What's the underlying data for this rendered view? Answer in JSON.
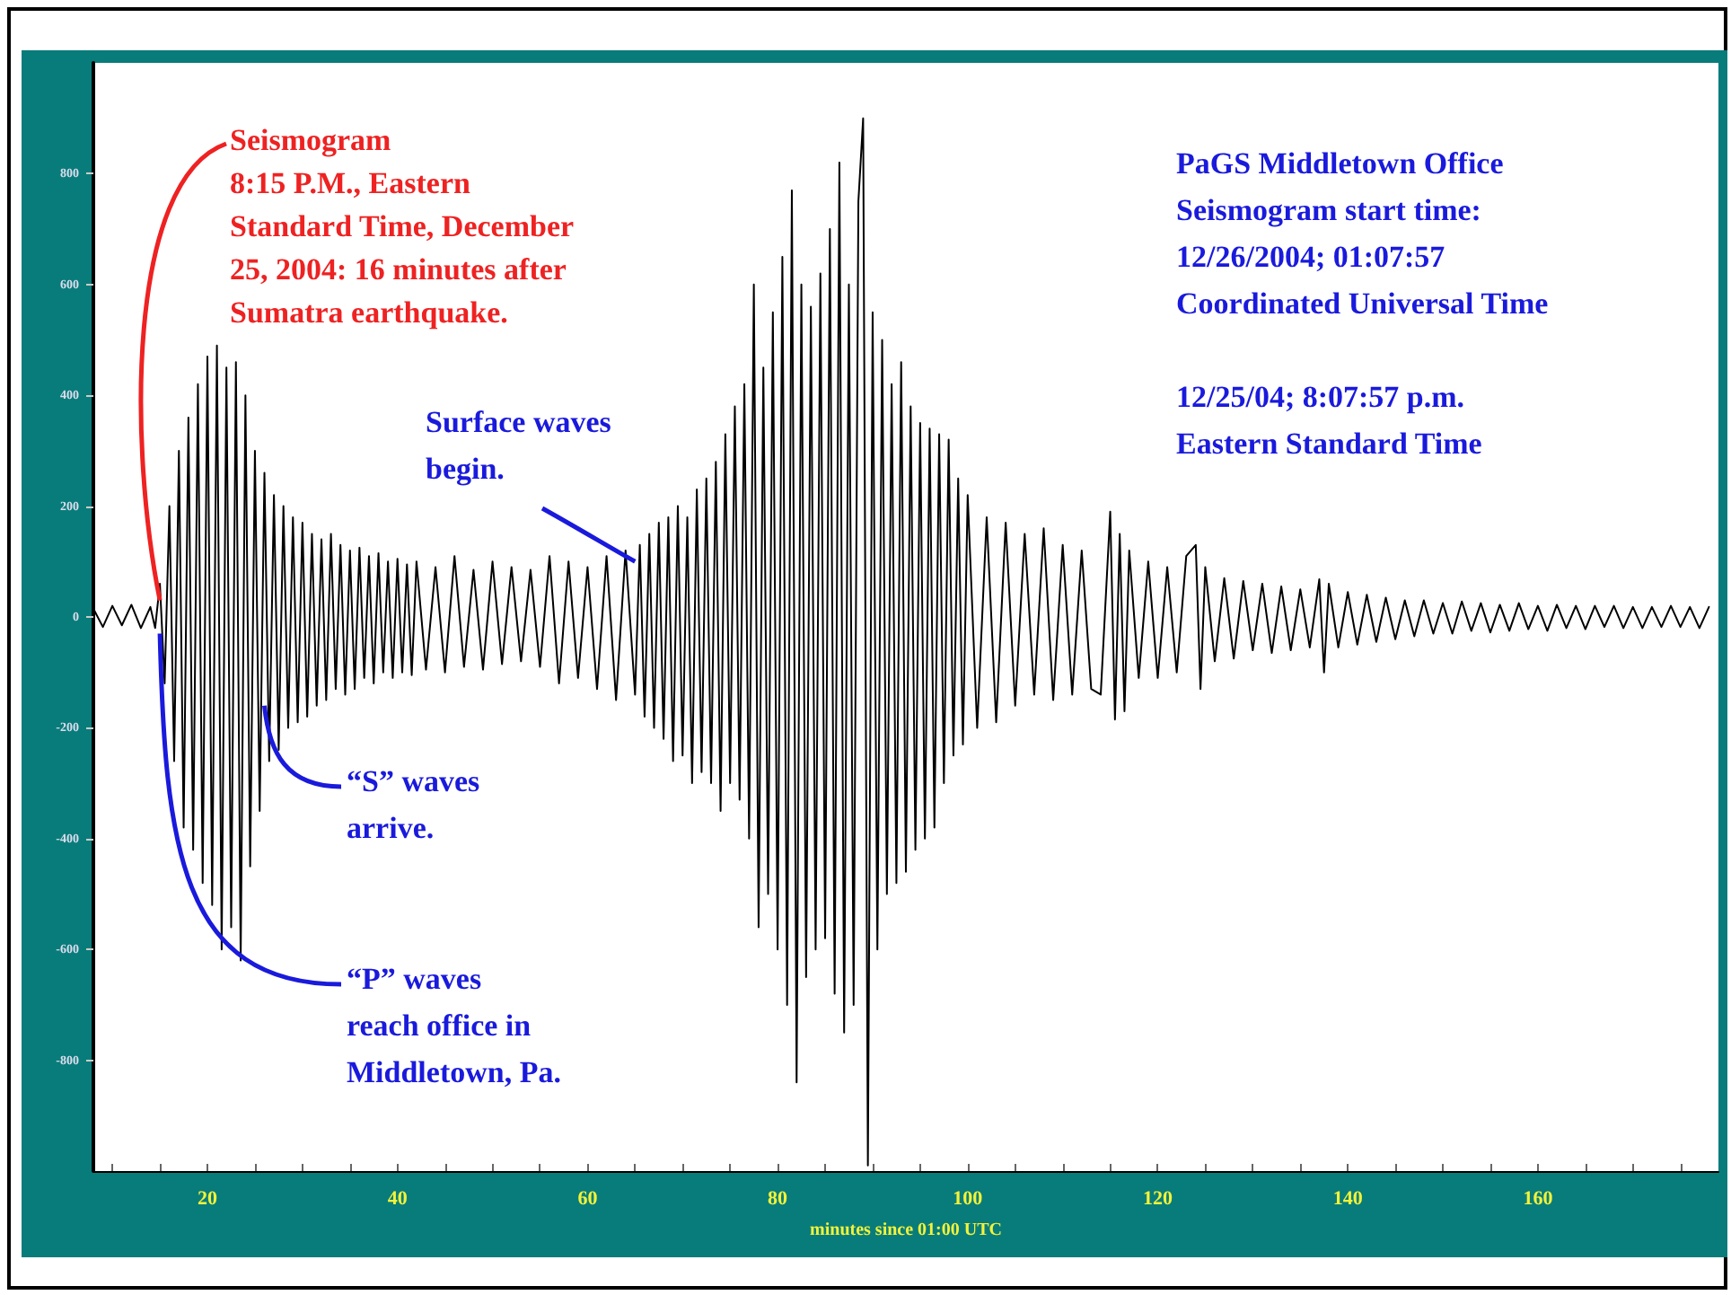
{
  "chart_data": {
    "type": "line",
    "xlabel": "minutes since 01:00 UTC",
    "x": [
      8,
      9,
      10,
      11,
      12,
      13,
      14,
      14.5,
      15,
      15.5,
      16,
      16.5,
      17,
      17.5,
      18,
      18.5,
      19,
      19.5,
      20,
      20.5,
      21,
      21.5,
      22,
      22.5,
      23,
      23.5,
      24,
      24.5,
      25,
      25.5,
      26,
      26.5,
      27,
      27.5,
      28,
      28.5,
      29,
      29.5,
      30,
      30.5,
      31,
      31.5,
      32,
      32.5,
      33,
      33.5,
      34,
      34.5,
      35,
      35.5,
      36,
      36.5,
      37,
      37.5,
      38,
      38.5,
      39,
      39.5,
      40,
      40.5,
      41,
      41.5,
      42,
      43,
      44,
      45,
      46,
      47,
      48,
      49,
      50,
      51,
      52,
      53,
      54,
      55,
      56,
      57,
      58,
      59,
      60,
      61,
      62,
      63,
      64,
      65,
      65.5,
      66,
      66.5,
      67,
      67.5,
      68,
      68.5,
      69,
      69.5,
      70,
      70.5,
      71,
      71.5,
      72,
      72.5,
      73,
      73.5,
      74,
      74.5,
      75,
      75.5,
      76,
      76.5,
      77,
      77.5,
      78,
      78.5,
      79,
      79.5,
      80,
      80.5,
      81,
      81.5,
      82,
      82.5,
      83,
      83.5,
      84,
      84.5,
      85,
      85.5,
      86,
      86.5,
      87,
      87.5,
      88,
      88.5,
      89,
      89.5,
      90,
      90.5,
      91,
      91.5,
      92,
      92.5,
      93,
      93.5,
      94,
      94.5,
      95,
      95.5,
      96,
      96.5,
      97,
      97.5,
      98,
      98.5,
      99,
      99.5,
      100,
      101,
      102,
      103,
      104,
      105,
      106,
      107,
      108,
      109,
      110,
      111,
      112,
      113,
      114,
      115,
      115.5,
      116,
      116.5,
      117,
      118,
      119,
      120,
      121,
      122,
      123,
      124,
      124.5,
      125,
      126,
      127,
      128,
      129,
      130,
      131,
      132,
      133,
      134,
      135,
      136,
      137,
      137.5,
      138,
      139,
      140,
      141,
      142,
      143,
      144,
      145,
      146,
      147,
      148,
      149,
      150,
      151,
      152,
      153,
      154,
      155,
      156,
      157,
      158,
      159,
      160,
      161,
      162,
      163,
      164,
      165,
      166,
      167,
      168,
      169,
      170,
      171,
      172,
      173,
      174,
      175,
      176,
      177,
      178
    ],
    "series": [
      {
        "color": "#000000",
        "values": [
          15,
          -18,
          20,
          -15,
          22,
          -20,
          18,
          -20,
          60,
          -120,
          200,
          -260,
          300,
          -380,
          360,
          -420,
          420,
          -480,
          470,
          -520,
          490,
          -600,
          450,
          -560,
          460,
          -620,
          400,
          -450,
          300,
          -350,
          260,
          -260,
          220,
          -240,
          200,
          -200,
          180,
          -190,
          170,
          -180,
          150,
          -160,
          140,
          -150,
          150,
          -130,
          130,
          -140,
          120,
          -130,
          125,
          -110,
          110,
          -120,
          115,
          -100,
          100,
          -110,
          105,
          -100,
          95,
          -105,
          100,
          -95,
          90,
          -100,
          110,
          -90,
          85,
          -95,
          100,
          -85,
          90,
          -80,
          85,
          -90,
          110,
          -120,
          100,
          -110,
          90,
          -130,
          110,
          -150,
          120,
          -140,
          130,
          -180,
          150,
          -200,
          170,
          -220,
          180,
          -260,
          200,
          -250,
          180,
          -300,
          230,
          -280,
          250,
          -300,
          280,
          -350,
          330,
          -300,
          380,
          -330,
          420,
          -400,
          600,
          -560,
          450,
          -500,
          550,
          -600,
          650,
          -700,
          770,
          -840,
          600,
          -650,
          560,
          -600,
          620,
          -580,
          700,
          -680,
          820,
          -750,
          600,
          -700,
          750,
          900,
          -990,
          550,
          -600,
          500,
          -500,
          420,
          -480,
          460,
          -460,
          380,
          -420,
          350,
          -400,
          340,
          -380,
          330,
          -300,
          320,
          -250,
          250,
          -230,
          220,
          -200,
          180,
          -190,
          170,
          -160,
          150,
          -140,
          160,
          -150,
          130,
          -140,
          120,
          -130,
          -140,
          190,
          -185,
          150,
          -170,
          120,
          -110,
          100,
          -110,
          90,
          -100,
          110,
          130,
          -130,
          90,
          -80,
          70,
          -75,
          65,
          -60,
          60,
          -65,
          55,
          -60,
          50,
          -55,
          68,
          -100,
          60,
          -55,
          45,
          -50,
          40,
          -45,
          35,
          -40,
          30,
          -35,
          30,
          -30,
          25,
          -30,
          28,
          -25,
          25,
          -28,
          22,
          -25,
          25,
          -22,
          20,
          -25,
          22,
          -20,
          20,
          -22,
          20,
          -18,
          20,
          -20,
          18,
          -20,
          18,
          -18,
          20,
          -18,
          18,
          -20,
          18
        ]
      }
    ],
    "xlim": [
      8,
      179
    ],
    "ylim": [
      -1000,
      1000
    ],
    "xticks": [
      {
        "value": 10,
        "label": null
      },
      {
        "value": 15,
        "label": null
      },
      20,
      {
        "value": 25,
        "label": null
      },
      {
        "value": 30,
        "label": null
      },
      {
        "value": 35,
        "label": null
      },
      40,
      {
        "value": 45,
        "label": null
      },
      {
        "value": 50,
        "label": null
      },
      {
        "value": 55,
        "label": null
      },
      60,
      {
        "value": 65,
        "label": null
      },
      {
        "value": 70,
        "label": null
      },
      {
        "value": 75,
        "label": null
      },
      80,
      {
        "value": 85,
        "label": null
      },
      {
        "value": 90,
        "label": null
      },
      {
        "value": 95,
        "label": null
      },
      100,
      {
        "value": 105,
        "label": null
      },
      {
        "value": 110,
        "label": null
      },
      {
        "value": 115,
        "label": null
      },
      120,
      {
        "value": 125,
        "label": null
      },
      {
        "value": 130,
        "label": null
      },
      {
        "value": 135,
        "label": null
      },
      140,
      {
        "value": 145,
        "label": null
      },
      {
        "value": 150,
        "label": null
      },
      {
        "value": 155,
        "label": null
      },
      160,
      {
        "value": 165,
        "label": null
      },
      {
        "value": 170,
        "label": null
      },
      {
        "value": 175,
        "label": null
      }
    ],
    "yticks": [
      -800,
      -600,
      -400,
      -200,
      0,
      200,
      400,
      600,
      800
    ],
    "grid": false,
    "marker": "none",
    "line_style": "solid",
    "annotations": [
      {
        "text": "Seismogram\n8:15 P.M., Eastern\nStandard Time, December\n25, 2004: 16 minutes after\nSumatra earthquake.",
        "x": 15,
        "y": 30
      },
      {
        "text": "Surface waves\nbegin.",
        "x": 65,
        "y": 100
      },
      {
        "text": "“S” waves\narrive.",
        "x": 26,
        "y": -160
      },
      {
        "text": "“P” waves\nreach office in\nMiddletown, Pa.",
        "x": 15,
        "y": -30
      },
      "PaGS Middletown Office\nSeismogram start time:\n12/26/2004; 01:07:57\nCoordinated Universal Time\n\n12/25/04; 8:07:57 p.m.\nEastern Standard Time"
    ]
  }
}
